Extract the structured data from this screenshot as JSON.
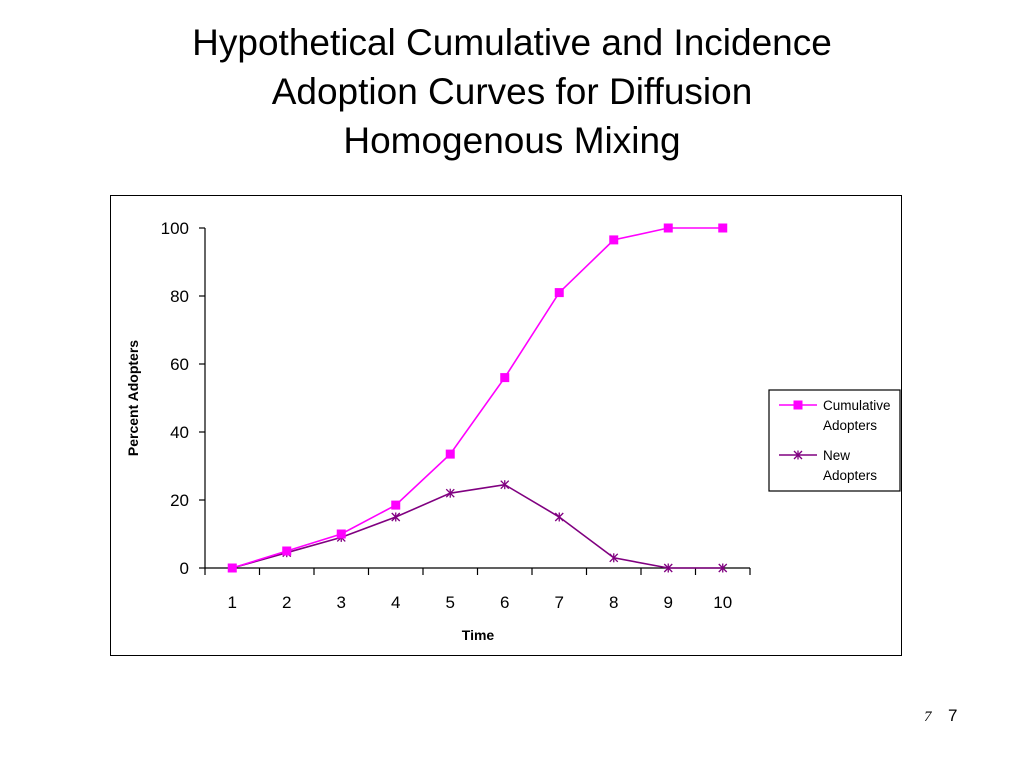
{
  "slide": {
    "title_lines": [
      "Hypothetical Cumulative and Incidence",
      "Adoption Curves for Diffusion",
      "Homogenous Mixing"
    ],
    "page_number_small": "7",
    "page_number_large": "7"
  },
  "chart_data": {
    "type": "line",
    "title": "",
    "xlabel": "Time",
    "ylabel": "Percent Adopters",
    "categories": [
      "1",
      "2",
      "3",
      "4",
      "5",
      "6",
      "7",
      "8",
      "9",
      "10"
    ],
    "ylim": [
      0,
      100
    ],
    "yticks": [
      "0",
      "20",
      "40",
      "60",
      "80",
      "100"
    ],
    "grid": false,
    "legend_position": "right",
    "series": [
      {
        "name_lines": [
          "Cumulative",
          "Adopters"
        ],
        "marker": "square",
        "color": "#ff00ff",
        "values": [
          0,
          5,
          10,
          18.5,
          33.5,
          56,
          81,
          96.5,
          100,
          100
        ]
      },
      {
        "name_lines": [
          "New",
          "Adopters"
        ],
        "marker": "star",
        "color": "#800080",
        "values": [
          0,
          4.5,
          9,
          15,
          22,
          24.5,
          15,
          3,
          0,
          0
        ]
      }
    ]
  }
}
